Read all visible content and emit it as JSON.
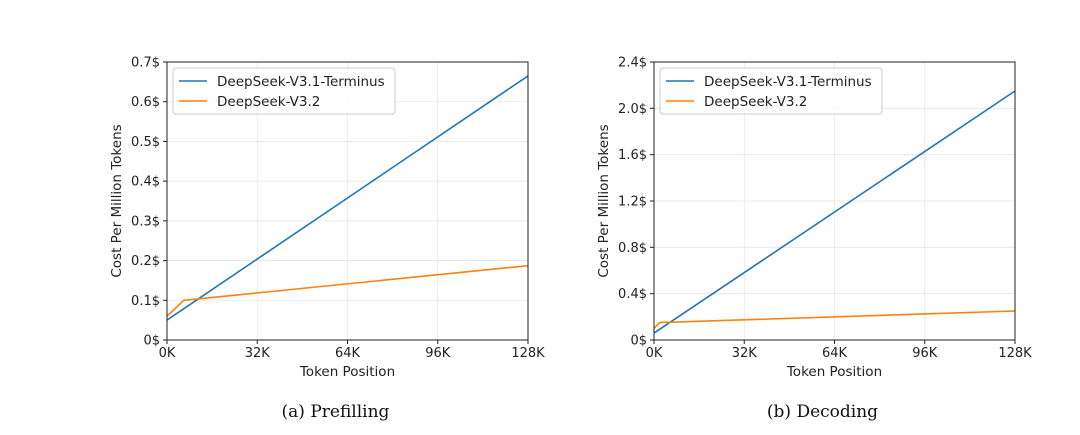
{
  "chart_data": [
    {
      "type": "line",
      "title": "",
      "caption": "(a) Prefilling",
      "xlabel": "Token Position",
      "ylabel": "Cost Per Million Tokens",
      "xlim": [
        0,
        128
      ],
      "ylim": [
        0,
        0.7
      ],
      "x_ticks": [
        0,
        32,
        64,
        96,
        128
      ],
      "x_tick_labels": [
        "0K",
        "32K",
        "64K",
        "96K",
        "128K"
      ],
      "y_ticks": [
        0,
        0.1,
        0.2,
        0.3,
        0.4,
        0.5,
        0.6,
        0.7
      ],
      "y_tick_labels": [
        "0$",
        "0.1$",
        "0.2$",
        "0.3$",
        "0.4$",
        "0.5$",
        "0.6$",
        "0.7$"
      ],
      "grid": true,
      "legend_position": "top-left",
      "series": [
        {
          "name": "DeepSeek-V3.1-Terminus",
          "color": "#1f77b4",
          "x": [
            0,
            128
          ],
          "y": [
            0.05,
            0.665
          ]
        },
        {
          "name": "DeepSeek-V3.2",
          "color": "#ff7f0e",
          "x": [
            0,
            6,
            128
          ],
          "y": [
            0.06,
            0.1,
            0.187
          ]
        }
      ]
    },
    {
      "type": "line",
      "title": "",
      "caption": "(b) Decoding",
      "xlabel": "Token Position",
      "ylabel": "Cost Per Million Tokens",
      "xlim": [
        0,
        128
      ],
      "ylim": [
        0,
        2.4
      ],
      "x_ticks": [
        0,
        32,
        64,
        96,
        128
      ],
      "x_tick_labels": [
        "0K",
        "32K",
        "64K",
        "96K",
        "128K"
      ],
      "y_ticks": [
        0,
        0.4,
        0.8,
        1.2,
        1.6,
        2.0,
        2.4
      ],
      "y_tick_labels": [
        "0$",
        "0.4$",
        "0.8$",
        "1.2$",
        "1.6$",
        "2.0$",
        "2.4$"
      ],
      "grid": true,
      "legend_position": "top-left",
      "series": [
        {
          "name": "DeepSeek-V3.1-Terminus",
          "color": "#1f77b4",
          "x": [
            0,
            128
          ],
          "y": [
            0.06,
            2.15
          ]
        },
        {
          "name": "DeepSeek-V3.2",
          "color": "#ff7f0e",
          "x": [
            0,
            2,
            128
          ],
          "y": [
            0.1,
            0.15,
            0.25
          ]
        }
      ]
    }
  ]
}
